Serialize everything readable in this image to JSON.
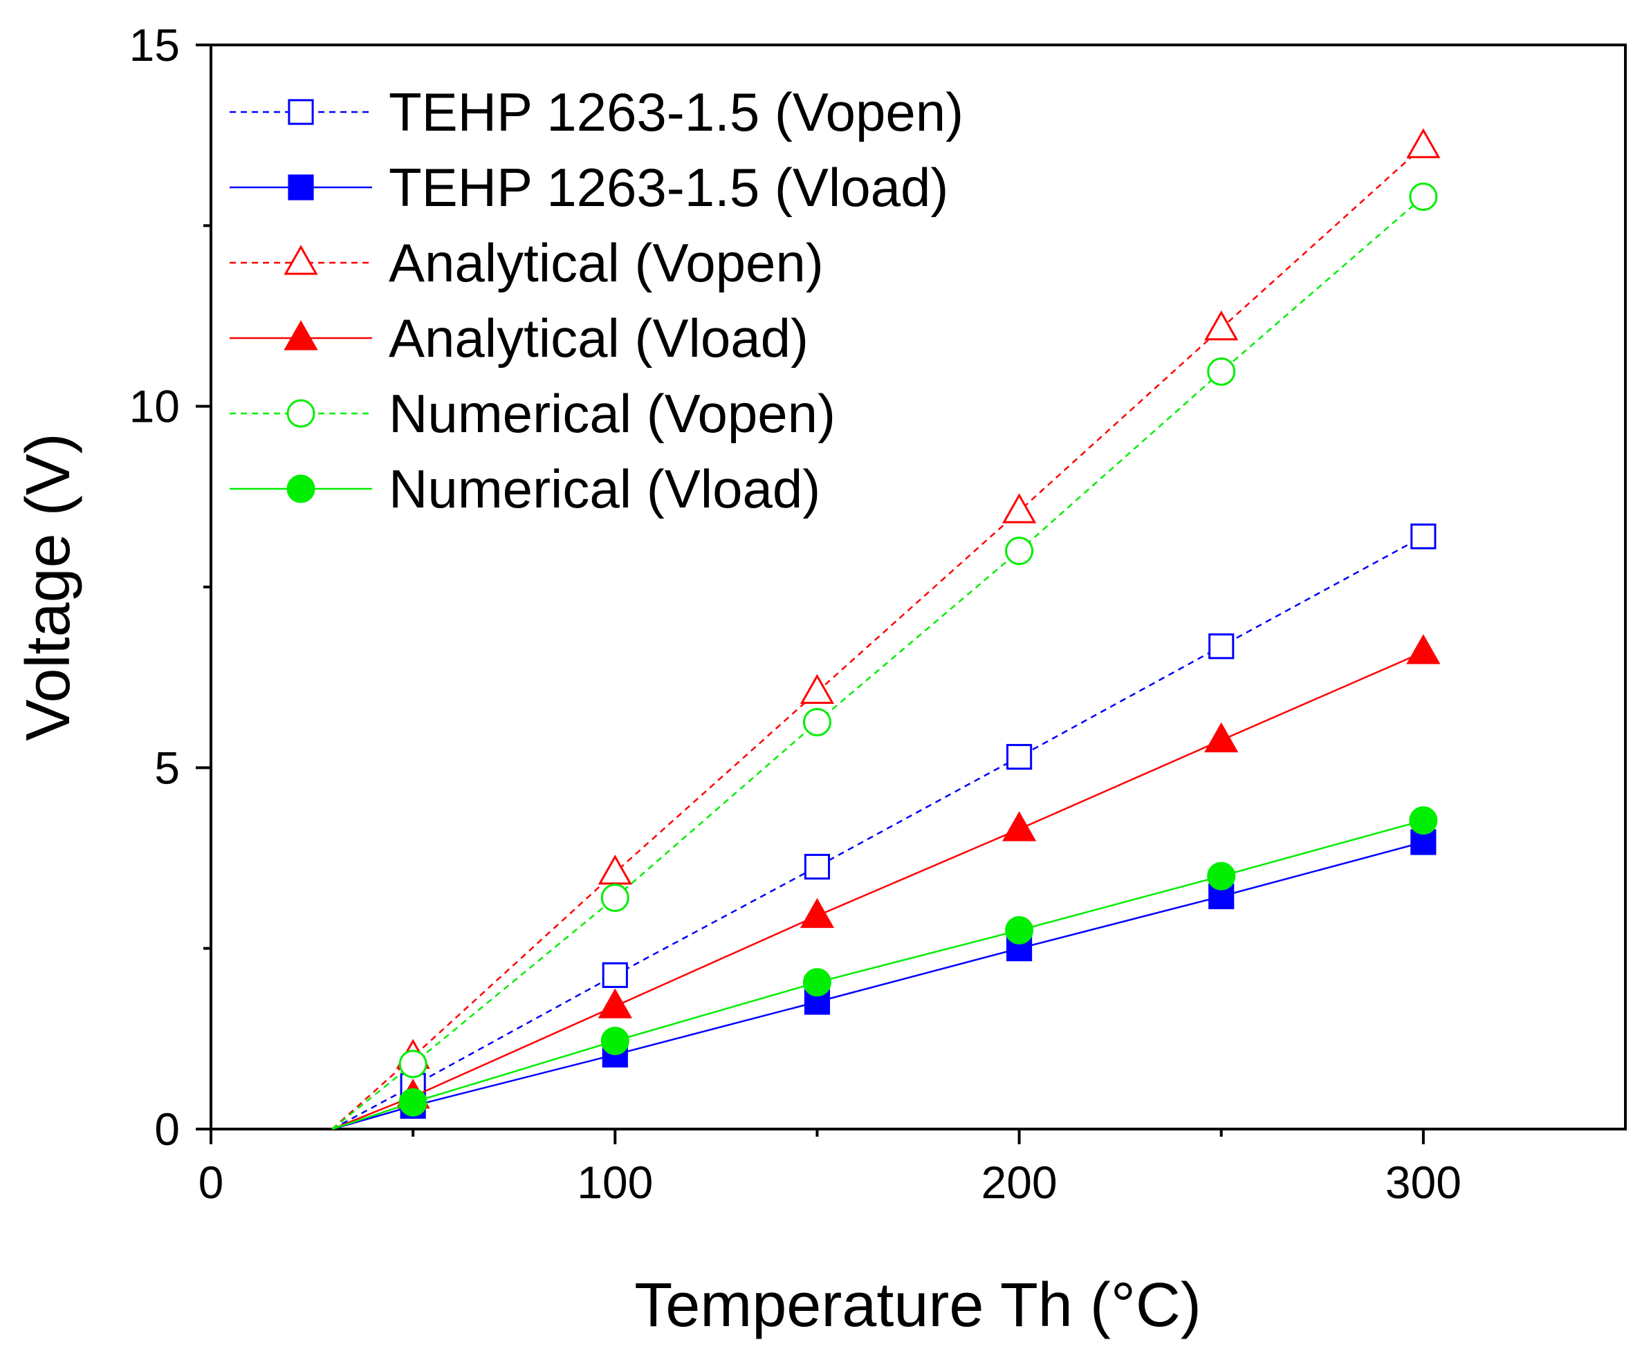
{
  "chart_data": {
    "type": "line",
    "title": "",
    "xlabel": "Temperature Th (°C)",
    "ylabel": "Voltage (V)",
    "xlim": [
      0,
      350
    ],
    "ylim": [
      0,
      15
    ],
    "xticks": [
      0,
      100,
      200,
      300
    ],
    "yticks": [
      0,
      5,
      10,
      15
    ],
    "grid": false,
    "legend_position": "top-left",
    "series": [
      {
        "name": "TEHP 1263-1.5 (Vopen)",
        "color": "#0000ff",
        "line": "dashed",
        "marker": "square",
        "filled": false,
        "x": [
          30,
          50,
          100,
          150,
          200,
          250,
          300
        ],
        "y": [
          0,
          0.6,
          2.13,
          3.63,
          5.15,
          6.68,
          8.2
        ]
      },
      {
        "name": "TEHP 1263-1.5 (Vload)",
        "color": "#0000ff",
        "line": "solid",
        "marker": "square",
        "filled": true,
        "x": [
          30,
          50,
          100,
          150,
          200,
          250,
          300
        ],
        "y": [
          0,
          0.32,
          1.03,
          1.76,
          2.5,
          3.22,
          3.97
        ]
      },
      {
        "name": "Analytical (Vopen)",
        "color": "#ff0000",
        "line": "dashed",
        "marker": "triangle",
        "filled": false,
        "x": [
          30,
          50,
          100,
          150,
          200,
          250,
          300
        ],
        "y": [
          0,
          1.0,
          3.55,
          6.05,
          8.55,
          11.08,
          13.6
        ]
      },
      {
        "name": "Analytical (Vload)",
        "color": "#ff0000",
        "line": "solid",
        "marker": "triangle",
        "filled": true,
        "x": [
          30,
          50,
          100,
          150,
          200,
          250,
          300
        ],
        "y": [
          0,
          0.45,
          1.7,
          2.95,
          4.15,
          5.38,
          6.6
        ]
      },
      {
        "name": "Numerical (Vopen)",
        "color": "#00ee00",
        "line": "dashed",
        "marker": "circle",
        "filled": false,
        "x": [
          30,
          50,
          100,
          150,
          200,
          250,
          300
        ],
        "y": [
          0,
          0.9,
          3.2,
          5.63,
          8.0,
          10.48,
          12.9
        ]
      },
      {
        "name": "Numerical (Vload)",
        "color": "#00ee00",
        "line": "solid",
        "marker": "circle",
        "filled": true,
        "x": [
          30,
          50,
          100,
          150,
          200,
          250,
          300
        ],
        "y": [
          0,
          0.37,
          1.22,
          2.03,
          2.75,
          3.5,
          4.27
        ]
      }
    ]
  }
}
